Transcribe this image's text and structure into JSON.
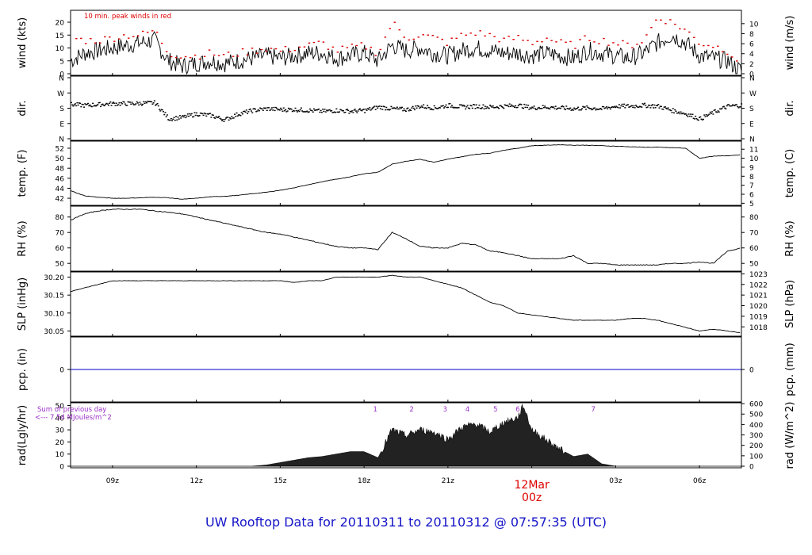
{
  "title": "UW Rooftop Data for 20110311  to  20110312 @ 07:57:35  (UTC)",
  "colors": {
    "peak": "#dd0000",
    "title": "#1515c8",
    "rad_note": "#9a2fc8",
    "date": "#dd0000",
    "pcp_line": "#0000cc"
  },
  "chart_data": [
    {
      "type": "line",
      "name": "wind",
      "ylabel": "wind (kts)",
      "ylabel_right": "wind (m/s)",
      "ylim": [
        0,
        24
      ],
      "yticks": [
        0,
        5,
        10,
        15,
        20
      ],
      "yticks_right": [
        0,
        2,
        4,
        6,
        8,
        10
      ],
      "annotation": "10 min. peak winds in red",
      "x_hours": [
        7.5,
        8.0,
        8.5,
        9.0,
        9.5,
        10.0,
        10.5,
        11.0,
        11.5,
        12.0,
        12.5,
        13.0,
        13.5,
        14.0,
        14.5,
        15.0,
        15.5,
        16.0,
        16.5,
        17.0,
        17.5,
        18.0,
        18.5,
        19.0,
        19.5,
        20.0,
        20.5,
        21.0,
        21.5,
        22.0,
        22.5,
        23.0,
        23.5,
        24.0,
        24.5,
        25.0,
        25.5,
        26.0,
        26.5,
        27.0,
        27.5,
        28.0,
        28.5,
        29.0,
        29.5,
        30.0,
        30.5,
        31.0,
        31.5
      ],
      "values": [
        5,
        8,
        9,
        10,
        11,
        12,
        13,
        5,
        3,
        4,
        5,
        4,
        5,
        6,
        7,
        6,
        7,
        8,
        8,
        6,
        7,
        8,
        5,
        11,
        9,
        10,
        8,
        7,
        9,
        10,
        9,
        8,
        8,
        7,
        8,
        7,
        6,
        9,
        8,
        7,
        6,
        8,
        12,
        15,
        12,
        7,
        6,
        5,
        1
      ],
      "peaks": [
        14,
        13,
        13,
        14,
        15,
        15,
        17,
        8,
        7,
        7,
        8,
        7,
        8,
        9,
        10,
        9,
        10,
        11,
        12,
        9,
        10,
        11,
        8,
        20,
        14,
        15,
        14,
        12,
        15,
        16,
        15,
        13,
        14,
        12,
        14,
        12,
        11,
        14,
        13,
        12,
        11,
        13,
        22,
        20,
        17,
        12,
        11,
        9,
        4
      ]
    },
    {
      "type": "scatter",
      "name": "dir",
      "ylabel": "dir.",
      "ylabel_right": "dir.",
      "ylim": [
        0,
        360
      ],
      "yticks": [
        "N",
        "E",
        "S",
        "W",
        "N"
      ],
      "x_hours": [
        7.5,
        8.0,
        8.5,
        9.0,
        9.5,
        10.0,
        10.5,
        11.0,
        11.5,
        12.0,
        12.5,
        13.0,
        13.5,
        14.0,
        14.5,
        15.0,
        15.5,
        16.0,
        16.5,
        17.0,
        17.5,
        18.0,
        18.5,
        19.0,
        19.5,
        20.0,
        20.5,
        21.0,
        21.5,
        22.0,
        22.5,
        23.0,
        23.5,
        24.0,
        24.5,
        25.0,
        25.5,
        26.0,
        26.5,
        27.0,
        27.5,
        28.0,
        28.5,
        29.0,
        29.5,
        30.0,
        30.5,
        31.0,
        31.5
      ],
      "values": [
        205,
        200,
        205,
        210,
        210,
        212,
        215,
        120,
        130,
        150,
        140,
        115,
        150,
        170,
        180,
        175,
        175,
        170,
        165,
        170,
        165,
        170,
        190,
        180,
        175,
        195,
        185,
        200,
        190,
        195,
        190,
        195,
        200,
        185,
        190,
        185,
        180,
        185,
        180,
        195,
        195,
        200,
        195,
        170,
        150,
        120,
        160,
        195,
        200
      ]
    },
    {
      "type": "line",
      "name": "temp",
      "ylabel": "temp. (F)",
      "ylabel_right": "temp. (C)",
      "ylim": [
        40.9,
        53.1
      ],
      "yticks": [
        42,
        44,
        46,
        48,
        50,
        52
      ],
      "yticks_right": [
        5,
        6,
        7,
        8,
        9,
        10,
        11
      ],
      "x_hours": [
        7.5,
        8.0,
        8.5,
        9.0,
        9.5,
        10.0,
        10.5,
        11.0,
        11.5,
        12.0,
        12.5,
        13.0,
        13.5,
        14.0,
        14.5,
        15.0,
        15.5,
        16.0,
        16.5,
        17.0,
        17.5,
        18.0,
        18.5,
        19.0,
        19.5,
        20.0,
        20.5,
        21.0,
        21.5,
        22.0,
        22.5,
        23.0,
        23.5,
        24.0,
        24.5,
        25.0,
        25.5,
        26.0,
        26.5,
        27.0,
        27.5,
        28.0,
        28.5,
        29.0,
        29.5,
        30.0,
        30.5,
        31.0,
        31.5
      ],
      "values": [
        43.5,
        42.5,
        42.2,
        42.0,
        42.0,
        42.1,
        42.2,
        42.1,
        41.8,
        42.0,
        42.3,
        42.4,
        42.6,
        42.9,
        43.2,
        43.6,
        44.1,
        44.7,
        45.3,
        45.8,
        46.3,
        46.9,
        47.2,
        48.8,
        49.4,
        49.8,
        49.2,
        49.8,
        50.3,
        50.8,
        51.0,
        51.6,
        52.0,
        52.5,
        52.6,
        52.7,
        52.6,
        52.6,
        52.5,
        52.4,
        52.3,
        52.2,
        52.2,
        52.1,
        52.0,
        50.0,
        50.4,
        50.5,
        50.7
      ]
    },
    {
      "type": "line",
      "name": "rh",
      "ylabel": "RH (%)",
      "ylabel_right": "RH (%)",
      "ylim": [
        46,
        86
      ],
      "yticks": [
        50,
        60,
        70,
        80
      ],
      "x_hours": [
        7.5,
        8.0,
        8.5,
        9.0,
        9.5,
        10.0,
        10.5,
        11.0,
        11.5,
        12.0,
        12.5,
        13.0,
        13.5,
        14.0,
        14.5,
        15.0,
        15.5,
        16.0,
        16.5,
        17.0,
        17.5,
        18.0,
        18.5,
        19.0,
        19.5,
        20.0,
        20.5,
        21.0,
        21.5,
        22.0,
        22.5,
        23.0,
        23.5,
        24.0,
        24.5,
        25.0,
        25.5,
        26.0,
        26.5,
        27.0,
        27.5,
        28.0,
        28.5,
        29.0,
        29.5,
        30.0,
        30.5,
        31.0,
        31.5
      ],
      "values": [
        78,
        82,
        84,
        85,
        85,
        85,
        84,
        83,
        82,
        80,
        78,
        76,
        74,
        72,
        70,
        69,
        67,
        65,
        63,
        61,
        60,
        60,
        59,
        70,
        66,
        61,
        60,
        60,
        63,
        62,
        58,
        57,
        55,
        53,
        53,
        53,
        55,
        50,
        50,
        49,
        49,
        49,
        49,
        50,
        50,
        51,
        50,
        58,
        60
      ]
    },
    {
      "type": "line",
      "name": "slp",
      "ylabel": "SLP (inHg)",
      "ylabel_right": "SLP (hPa)",
      "ylim": [
        30.04,
        30.21
      ],
      "yticks": [
        30.05,
        30.1,
        30.15,
        30.2
      ],
      "yticks_right": [
        1018,
        1019,
        1020,
        1021,
        1022,
        1023
      ],
      "x_hours": [
        7.5,
        8.0,
        8.5,
        9.0,
        9.5,
        10.0,
        10.5,
        11.0,
        11.5,
        12.0,
        12.5,
        13.0,
        13.5,
        14.0,
        14.5,
        15.0,
        15.5,
        16.0,
        16.5,
        17.0,
        17.5,
        18.0,
        18.5,
        19.0,
        19.5,
        20.0,
        20.5,
        21.0,
        21.5,
        22.0,
        22.5,
        23.0,
        23.5,
        24.0,
        24.5,
        25.0,
        25.5,
        26.0,
        26.5,
        27.0,
        27.5,
        28.0,
        28.5,
        29.0,
        29.5,
        30.0,
        30.5,
        31.0,
        31.5
      ],
      "values": [
        30.16,
        30.17,
        30.18,
        30.19,
        30.19,
        30.19,
        30.19,
        30.19,
        30.19,
        30.19,
        30.19,
        30.19,
        30.19,
        30.19,
        30.19,
        30.19,
        30.185,
        30.19,
        30.19,
        30.2,
        30.2,
        30.2,
        30.2,
        30.205,
        30.2,
        30.2,
        30.19,
        30.18,
        30.17,
        30.15,
        30.13,
        30.12,
        30.1,
        30.095,
        30.09,
        30.085,
        30.08,
        30.08,
        30.08,
        30.08,
        30.085,
        30.085,
        30.08,
        30.07,
        30.06,
        30.05,
        30.055,
        30.05,
        30.045
      ]
    },
    {
      "type": "line",
      "name": "pcp",
      "ylabel": "pcp. (in)",
      "ylabel_right": "pcp. (mm)",
      "ylim": [
        -0.04,
        0.04
      ],
      "yticks": [
        0
      ],
      "yticks_right": [
        0
      ],
      "x_hours": [
        7.5,
        31.5
      ],
      "values": [
        0,
        0
      ]
    },
    {
      "type": "area",
      "name": "rad",
      "ylabel": "rad(Lgly/hr)",
      "ylabel_right": "rad (W/m^2)",
      "ylim": [
        0,
        51
      ],
      "yticks": [
        0,
        10,
        20,
        30,
        40,
        50
      ],
      "yticks_right": [
        0,
        100,
        200,
        300,
        400,
        500,
        600
      ],
      "note_line1": "Sum of previous day",
      "note_line2": "<--- 7.54 MJoules/m^2",
      "hour_marks": [
        {
          "label": "1",
          "hour": 18.4
        },
        {
          "label": "2",
          "hour": 19.7
        },
        {
          "label": "3",
          "hour": 20.9
        },
        {
          "label": "4",
          "hour": 21.7
        },
        {
          "label": "5",
          "hour": 22.7
        },
        {
          "label": "6",
          "hour": 23.5
        },
        {
          "label": "7",
          "hour": 26.2
        }
      ],
      "x_hours": [
        14.0,
        14.5,
        15.0,
        15.5,
        16.0,
        16.5,
        17.0,
        17.5,
        18.0,
        18.5,
        19.0,
        19.5,
        20.0,
        20.5,
        21.0,
        21.5,
        22.0,
        22.5,
        23.0,
        23.5,
        23.7,
        24.0,
        24.5,
        25.0,
        25.5,
        26.0,
        26.5,
        27.0
      ],
      "values": [
        0,
        1,
        3,
        5,
        7,
        8,
        10,
        12,
        12,
        7,
        30,
        25,
        30,
        28,
        22,
        32,
        35,
        28,
        36,
        40,
        50,
        30,
        22,
        14,
        8,
        10,
        2,
        0
      ]
    }
  ],
  "x_axis": {
    "ticks": [
      {
        "hour": 9,
        "label": "09z"
      },
      {
        "hour": 12,
        "label": "12z"
      },
      {
        "hour": 15,
        "label": "15z"
      },
      {
        "hour": 18,
        "label": "18z"
      },
      {
        "hour": 21,
        "label": "21z"
      },
      {
        "hour": 27,
        "label": "03z"
      },
      {
        "hour": 30,
        "label": "06z"
      }
    ],
    "date_line1": "12Mar",
    "date_line2": "00z"
  }
}
